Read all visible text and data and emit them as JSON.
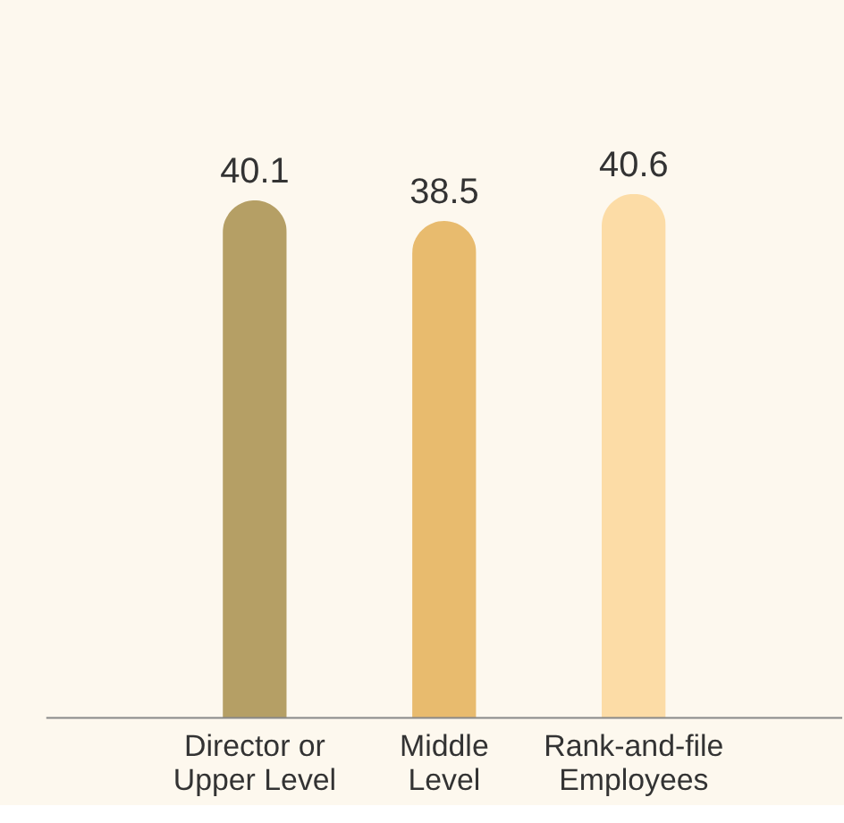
{
  "chart_data": {
    "type": "bar",
    "categories": [
      "Director or\nUpper Level",
      "Middle\nLevel",
      "Rank-and-file\nEmployees"
    ],
    "values": [
      40.1,
      38.5,
      40.6
    ],
    "colors": [
      "#b59f65",
      "#e8bb6e",
      "#fcdca6"
    ],
    "data_labels": true,
    "grid": false
  }
}
